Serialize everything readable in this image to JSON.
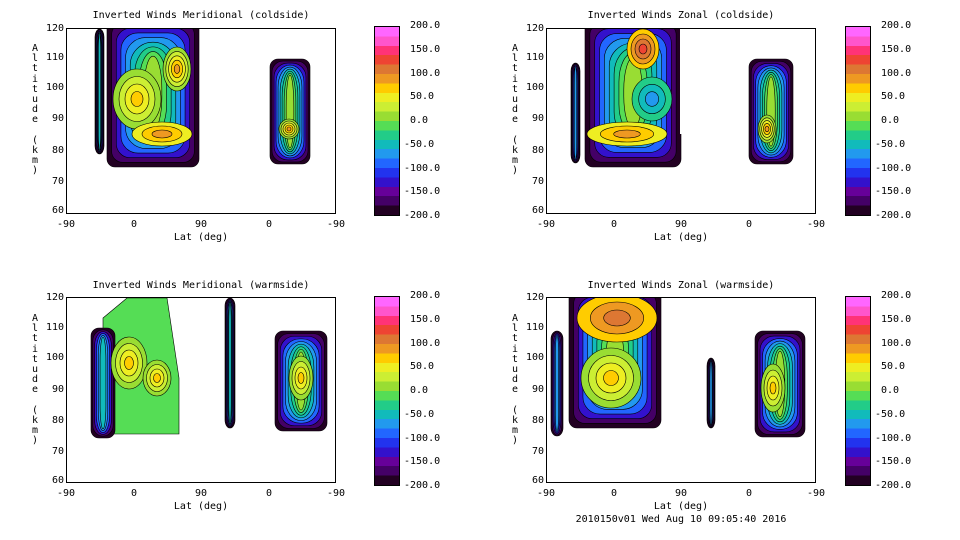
{
  "footer": "2010150v01 Wed Aug 10 09:05:40 2016",
  "colorbar": {
    "labels": [
      "200.0",
      "150.0",
      "100.0",
      "50.0",
      "0.0",
      "-50.0",
      "-100.0",
      "-150.0",
      "-200.0"
    ],
    "colors": [
      "#ff66ff",
      "#ff55cc",
      "#ff3377",
      "#ee4433",
      "#dd7733",
      "#ee9922",
      "#ffcc00",
      "#eeee22",
      "#ccee33",
      "#99dd33",
      "#55dd55",
      "#22cc88",
      "#11bbbb",
      "#2299ee",
      "#2266ff",
      "#2233ee",
      "#3311cc",
      "#660099",
      "#440066",
      "#220022"
    ]
  },
  "chart_data": [
    {
      "type": "heatmap",
      "title": "Inverted Winds Meridional (coldside)",
      "xlabel": "Lat (deg)",
      "ylabel": "Altitude (km)",
      "xticks": [
        "-90",
        "0",
        "90",
        "0",
        "-90"
      ],
      "yticks": [
        "120",
        "110",
        "100",
        "90",
        "80",
        "70",
        "60"
      ],
      "ylim": [
        60,
        120
      ],
      "zrange": [
        -200,
        200
      ]
    },
    {
      "type": "heatmap",
      "title": "Inverted Winds Zonal (coldside)",
      "xlabel": "Lat (deg)",
      "ylabel": "Altitude (km)",
      "xticks": [
        "-90",
        "0",
        "90",
        "0",
        "-90"
      ],
      "yticks": [
        "120",
        "110",
        "100",
        "90",
        "80",
        "70",
        "60"
      ],
      "ylim": [
        60,
        120
      ],
      "zrange": [
        -200,
        200
      ]
    },
    {
      "type": "heatmap",
      "title": "Inverted Winds Meridional (warmside)",
      "xlabel": "Lat (deg)",
      "ylabel": "Altitude (km)",
      "xticks": [
        "-90",
        "0",
        "90",
        "0",
        "-90"
      ],
      "yticks": [
        "120",
        "110",
        "100",
        "90",
        "80",
        "70",
        "60"
      ],
      "ylim": [
        60,
        120
      ],
      "zrange": [
        -200,
        200
      ]
    },
    {
      "type": "heatmap",
      "title": "Inverted Winds Zonal (warmside)",
      "xlabel": "Lat (deg)",
      "ylabel": "Altitude (km)",
      "xticks": [
        "-90",
        "0",
        "90",
        "0",
        "-90"
      ],
      "yticks": [
        "120",
        "110",
        "100",
        "90",
        "80",
        "70",
        "60"
      ],
      "ylim": [
        60,
        120
      ],
      "zrange": [
        -200,
        200
      ]
    }
  ]
}
